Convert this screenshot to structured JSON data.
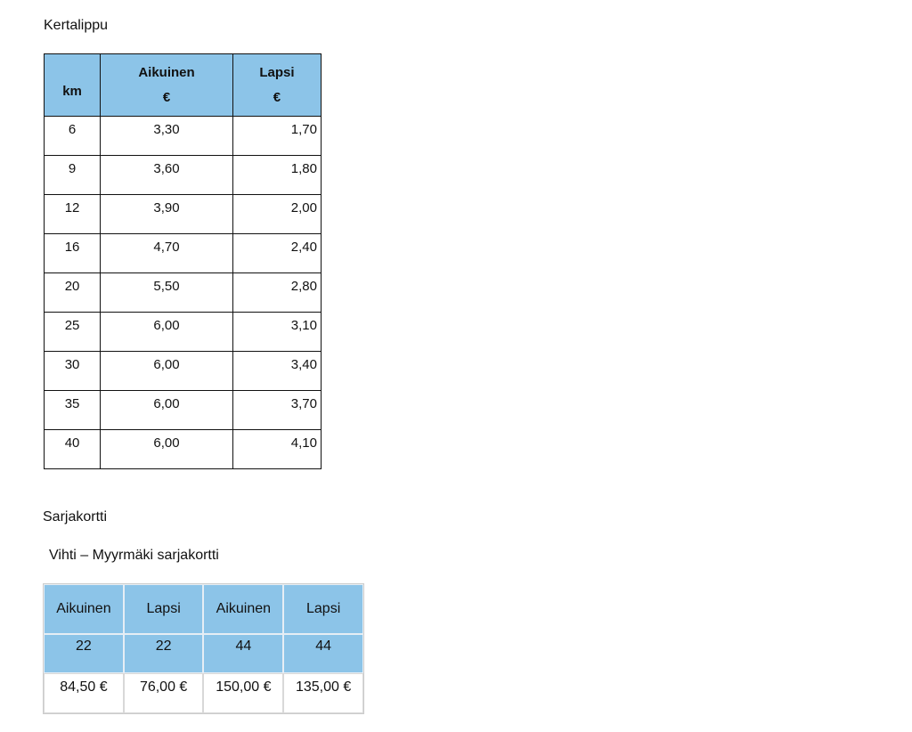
{
  "section1": {
    "title": "Kertalippu",
    "headers": [
      [
        "km"
      ],
      [
        "Aikuinen",
        "€"
      ],
      [
        "Lapsi",
        "€"
      ]
    ],
    "rows": [
      [
        "6",
        "3,30",
        "1,70"
      ],
      [
        "9",
        "3,60",
        "1,80"
      ],
      [
        "12",
        "3,90",
        "2,00"
      ],
      [
        "16",
        "4,70",
        "2,40"
      ],
      [
        "20",
        "5,50",
        "2,80"
      ],
      [
        "25",
        "6,00",
        "3,10"
      ],
      [
        "30",
        "6,00",
        "3,40"
      ],
      [
        "35",
        "6,00",
        "3,70"
      ],
      [
        "40",
        "6,00",
        "4,10"
      ]
    ]
  },
  "section2": {
    "title": "Sarjakortti",
    "subtitle": "Vihti – Myyrmäki sarjakortti",
    "headers": [
      "Aikuinen",
      "Lapsi",
      "Aikuinen",
      "Lapsi"
    ],
    "trips": [
      "22",
      "22",
      "44",
      "44"
    ],
    "prices": [
      "84,50 €",
      "76,00 €",
      "150,00 €",
      "135,00 €"
    ]
  },
  "colors": {
    "header_fill": "#8cc4e8"
  }
}
